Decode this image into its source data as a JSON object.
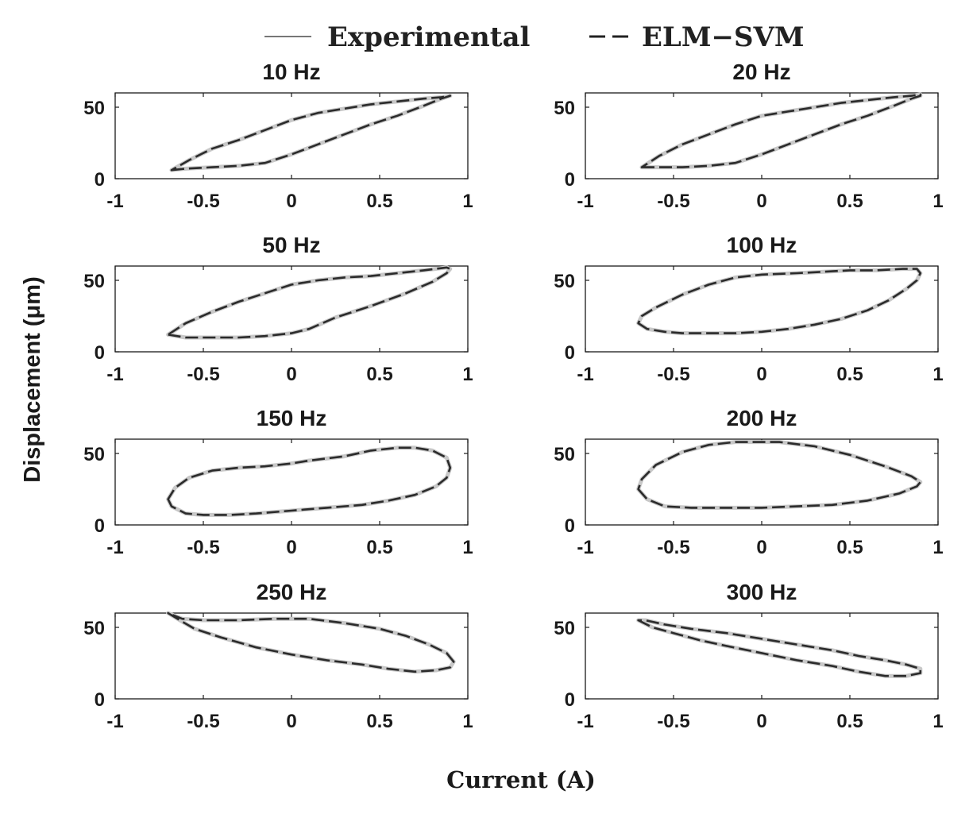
{
  "chart_data": {
    "type": "line",
    "legend": {
      "placement": "top-center",
      "entries": [
        {
          "label": "Experimental",
          "style": "solid"
        },
        {
          "label": "ELM−SVM",
          "style": "dashed"
        }
      ]
    },
    "xlabel": "Current (A)",
    "ylabel": "Displacement (μm)",
    "xlim": [
      -1,
      1
    ],
    "ylim": [
      0,
      60
    ],
    "xticks": [
      "-1",
      "-0.5",
      "0",
      "0.5",
      "1"
    ],
    "yticks": [
      "0",
      "50"
    ],
    "colors": {
      "experimental": "#c8c8c8",
      "elm_svm": "#2b2b2b",
      "axis": "#1a1a1a"
    },
    "subplots": [
      {
        "title": "10 Hz",
        "series": [
          {
            "name": "Experimental",
            "x": [
              -0.68,
              -0.6,
              -0.45,
              -0.3,
              -0.15,
              0,
              0.15,
              0.3,
              0.45,
              0.6,
              0.75,
              0.85,
              0.9,
              0.9,
              0.85,
              0.75,
              0.6,
              0.45,
              0.3,
              0.15,
              0,
              -0.15,
              -0.3,
              -0.45,
              -0.58,
              -0.68
            ],
            "y": [
              6,
              7,
              8,
              9,
              11,
              17,
              24,
              31,
              38,
              44,
              51,
              56,
              58,
              58,
              57,
              56,
              54,
              52,
              49,
              46,
              41,
              34,
              27,
              21,
              13,
              6
            ]
          }
        ]
      },
      {
        "title": "20 Hz",
        "series": [
          {
            "name": "Experimental",
            "x": [
              -0.68,
              -0.6,
              -0.45,
              -0.3,
              -0.15,
              0,
              0.15,
              0.3,
              0.45,
              0.6,
              0.75,
              0.85,
              0.9,
              0.9,
              0.85,
              0.75,
              0.6,
              0.45,
              0.3,
              0.15,
              0,
              -0.15,
              -0.3,
              -0.45,
              -0.58,
              -0.68
            ],
            "y": [
              8,
              8,
              8,
              9,
              11,
              17,
              24,
              31,
              38,
              44,
              51,
              56,
              58,
              59,
              58,
              57,
              55,
              53,
              50,
              47,
              44,
              38,
              31,
              24,
              16,
              8
            ]
          }
        ]
      },
      {
        "title": "50 Hz",
        "series": [
          {
            "name": "Experimental",
            "x": [
              -0.7,
              -0.6,
              -0.45,
              -0.3,
              -0.15,
              0,
              0.1,
              0.25,
              0.45,
              0.65,
              0.8,
              0.88,
              0.9,
              0.88,
              0.75,
              0.6,
              0.45,
              0.3,
              0.15,
              0,
              -0.15,
              -0.3,
              -0.45,
              -0.6,
              -0.7
            ],
            "y": [
              12,
              10,
              10,
              10,
              11,
              13,
              16,
              24,
              32,
              41,
              49,
              55,
              58,
              59,
              57,
              55,
              53,
              52,
              50,
              47,
              41,
              35,
              28,
              20,
              12
            ]
          }
        ]
      },
      {
        "title": "100 Hz",
        "series": [
          {
            "name": "Experimental",
            "x": [
              -0.7,
              -0.65,
              -0.55,
              -0.45,
              -0.3,
              -0.15,
              0,
              0.15,
              0.3,
              0.45,
              0.6,
              0.72,
              0.82,
              0.88,
              0.9,
              0.88,
              0.8,
              0.65,
              0.5,
              0.35,
              0.2,
              0,
              -0.15,
              -0.3,
              -0.45,
              -0.6,
              -0.68,
              -0.7
            ],
            "y": [
              20,
              16,
              14,
              13,
              13,
              13,
              14,
              16,
              19,
              23,
              29,
              36,
              44,
              50,
              55,
              58,
              58,
              57,
              57,
              56,
              55,
              54,
              52,
              47,
              40,
              31,
              25,
              20
            ]
          }
        ]
      },
      {
        "title": "150 Hz",
        "series": [
          {
            "name": "Experimental",
            "x": [
              -0.7,
              -0.68,
              -0.6,
              -0.5,
              -0.35,
              -0.2,
              0,
              0.2,
              0.4,
              0.55,
              0.7,
              0.82,
              0.88,
              0.9,
              0.88,
              0.8,
              0.7,
              0.6,
              0.45,
              0.3,
              0.1,
              0,
              -0.15,
              -0.3,
              -0.45,
              -0.58,
              -0.66,
              -0.7
            ],
            "y": [
              18,
              13,
              8,
              7,
              7,
              8,
              10,
              12,
              14,
              17,
              21,
              27,
              33,
              40,
              47,
              52,
              54,
              54,
              52,
              48,
              45,
              43,
              41,
              40,
              38,
              33,
              26,
              18
            ]
          }
        ]
      },
      {
        "title": "200 Hz",
        "series": [
          {
            "name": "Experimental",
            "x": [
              -0.7,
              -0.65,
              -0.55,
              -0.4,
              -0.2,
              0,
              0.2,
              0.4,
              0.6,
              0.78,
              0.88,
              0.9,
              0.85,
              0.7,
              0.5,
              0.3,
              0.1,
              0,
              -0.15,
              -0.3,
              -0.45,
              -0.6,
              -0.68,
              -0.7
            ],
            "y": [
              25,
              18,
              13,
              12,
              12,
              12,
              13,
              14,
              17,
              22,
              27,
              30,
              34,
              41,
              49,
              55,
              58,
              58,
              58,
              56,
              51,
              42,
              32,
              25
            ]
          }
        ]
      },
      {
        "title": "250 Hz",
        "series": [
          {
            "name": "Experimental",
            "x": [
              -0.7,
              -0.62,
              -0.55,
              -0.4,
              -0.2,
              0,
              0.2,
              0.4,
              0.55,
              0.7,
              0.82,
              0.9,
              0.92,
              0.88,
              0.78,
              0.65,
              0.5,
              0.3,
              0.1,
              -0.1,
              -0.3,
              -0.5,
              -0.62,
              -0.7
            ],
            "y": [
              60,
              54,
              49,
              43,
              36,
              31,
              27,
              24,
              21,
              19,
              20,
              22,
              26,
              32,
              38,
              44,
              49,
              53,
              56,
              56,
              55,
              55,
              56,
              60
            ]
          }
        ]
      },
      {
        "title": "300 Hz",
        "series": [
          {
            "name": "Experimental",
            "x": [
              -0.7,
              -0.62,
              -0.5,
              -0.35,
              -0.2,
              0,
              0.2,
              0.4,
              0.55,
              0.7,
              0.82,
              0.9,
              0.9,
              0.82,
              0.7,
              0.55,
              0.4,
              0.2,
              0,
              -0.2,
              -0.4,
              -0.55,
              -0.66,
              -0.7
            ],
            "y": [
              55,
              50,
              46,
              41,
              37,
              32,
              27,
              23,
              19,
              16,
              16,
              18,
              21,
              24,
              27,
              30,
              34,
              38,
              42,
              46,
              49,
              52,
              55,
              55
            ]
          }
        ]
      }
    ]
  }
}
